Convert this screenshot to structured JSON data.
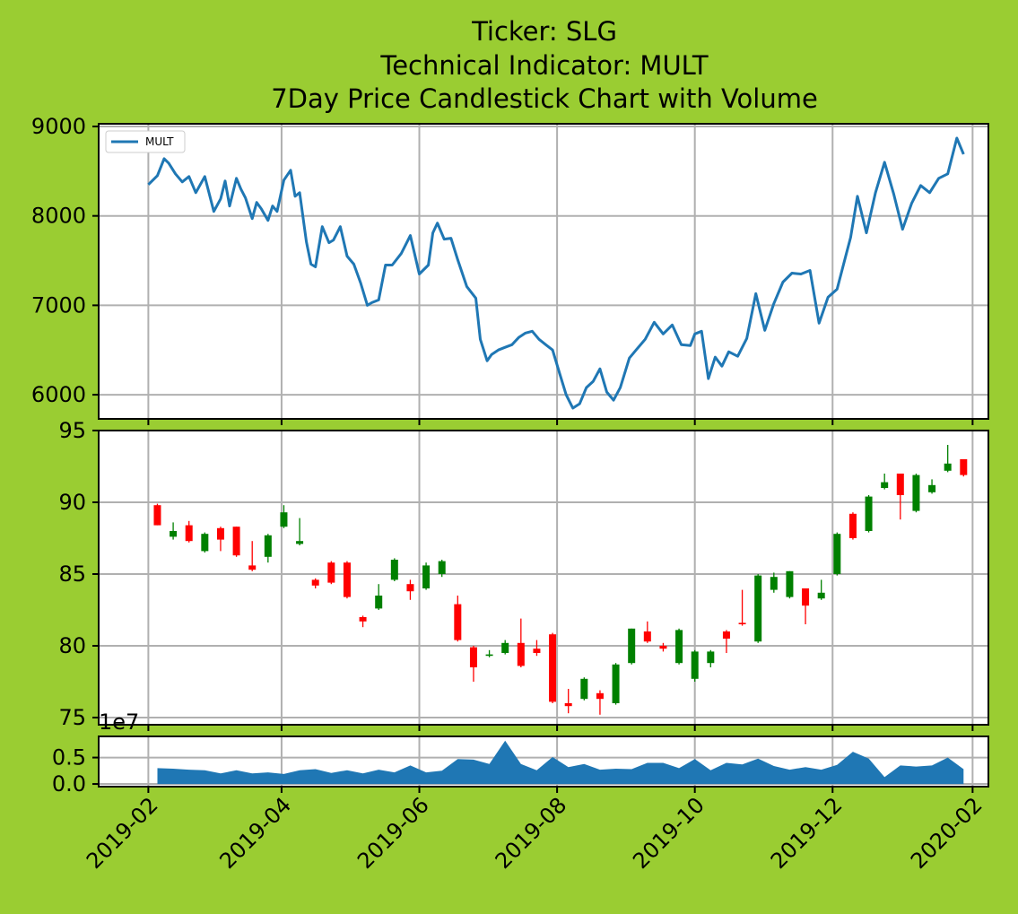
{
  "background_color": "#9acd32",
  "chart_data": [
    {
      "panel": "indicator",
      "type": "line",
      "title_lines": [
        "Ticker: SLG",
        "Technical Indicator: MULT",
        "7Day Price Candlestick Chart with Volume"
      ],
      "legend": {
        "label": "MULT",
        "placement": "top-left"
      },
      "color": "#1f77b4",
      "grid": true,
      "xlim": [
        "2019-01-10",
        "2020-02-08"
      ],
      "ylim": [
        5730,
        9030
      ],
      "yticks": [
        6000,
        7000,
        8000,
        9000
      ],
      "x": [
        "2019-02-01",
        "2019-02-05",
        "2019-02-08",
        "2019-02-10",
        "2019-02-13",
        "2019-02-16",
        "2019-02-19",
        "2019-02-22",
        "2019-02-26",
        "2019-03-02",
        "2019-03-05",
        "2019-03-07",
        "2019-03-09",
        "2019-03-12",
        "2019-03-14",
        "2019-03-16",
        "2019-03-19",
        "2019-03-21",
        "2019-03-23",
        "2019-03-26",
        "2019-03-28",
        "2019-03-30",
        "2019-04-02",
        "2019-04-05",
        "2019-04-07",
        "2019-04-09",
        "2019-04-12",
        "2019-04-14",
        "2019-04-16",
        "2019-04-19",
        "2019-04-22",
        "2019-04-24",
        "2019-04-27",
        "2019-04-30",
        "2019-05-03",
        "2019-05-06",
        "2019-05-09",
        "2019-05-11",
        "2019-05-14",
        "2019-05-17",
        "2019-05-20",
        "2019-05-24",
        "2019-05-28",
        "2019-06-01",
        "2019-06-05",
        "2019-06-07",
        "2019-06-09",
        "2019-06-12",
        "2019-06-15",
        "2019-06-18",
        "2019-06-22",
        "2019-06-26",
        "2019-06-28",
        "2019-07-01",
        "2019-07-03",
        "2019-07-06",
        "2019-07-09",
        "2019-07-12",
        "2019-07-15",
        "2019-07-18",
        "2019-07-21",
        "2019-07-24",
        "2019-07-27",
        "2019-07-30",
        "2019-08-02",
        "2019-08-05",
        "2019-08-08",
        "2019-08-11",
        "2019-08-14",
        "2019-08-17",
        "2019-08-20",
        "2019-08-23",
        "2019-08-26",
        "2019-08-29",
        "2019-09-02",
        "2019-09-05",
        "2019-09-09",
        "2019-09-13",
        "2019-09-17",
        "2019-09-21",
        "2019-09-25",
        "2019-09-29",
        "2019-10-01",
        "2019-10-04",
        "2019-10-07",
        "2019-10-10",
        "2019-10-13",
        "2019-10-16",
        "2019-10-20",
        "2019-10-24",
        "2019-10-28",
        "2019-11-01",
        "2019-11-05",
        "2019-11-09",
        "2019-11-13",
        "2019-11-17",
        "2019-11-21",
        "2019-11-25",
        "2019-11-29",
        "2019-12-03",
        "2019-12-07",
        "2019-12-09",
        "2019-12-12",
        "2019-12-16",
        "2019-12-20",
        "2019-12-24",
        "2019-12-28",
        "2020-01-01",
        "2020-01-05",
        "2020-01-09",
        "2020-01-13",
        "2020-01-17",
        "2020-01-21",
        "2020-01-25",
        "2020-01-28"
      ],
      "y": [
        8350,
        8450,
        8640,
        8590,
        8470,
        8380,
        8440,
        8260,
        8440,
        8050,
        8190,
        8390,
        8110,
        8420,
        8300,
        8200,
        7970,
        8150,
        8080,
        7950,
        8110,
        8050,
        8400,
        8510,
        8220,
        8260,
        7710,
        7460,
        7430,
        7880,
        7700,
        7730,
        7880,
        7550,
        7460,
        7250,
        7000,
        7030,
        7060,
        7450,
        7450,
        7580,
        7780,
        7350,
        7450,
        7810,
        7920,
        7740,
        7750,
        7510,
        7210,
        7080,
        6620,
        6380,
        6450,
        6500,
        6530,
        6560,
        6640,
        6690,
        6710,
        6620,
        6560,
        6500,
        6250,
        6000,
        5850,
        5900,
        6080,
        6150,
        6290,
        6030,
        5940,
        6080,
        6410,
        6500,
        6620,
        6810,
        6680,
        6780,
        6560,
        6550,
        6680,
        6710,
        6180,
        6420,
        6320,
        6480,
        6430,
        6630,
        7130,
        6720,
        7020,
        7260,
        7360,
        7350,
        7390,
        6800,
        7090,
        7180,
        7570,
        7760,
        8220,
        7810,
        8260,
        8600,
        8250,
        7850,
        8140,
        8340,
        8260,
        8420,
        8470,
        8870,
        8690
      ]
    },
    {
      "panel": "candlestick",
      "type": "candlestick",
      "grid": true,
      "ylim": [
        74.5,
        95
      ],
      "yticks": [
        75,
        80,
        85,
        90,
        95
      ],
      "up_color": "#008000",
      "down_color": "#ff0000",
      "dates": [
        "2019-02-05",
        "2019-02-12",
        "2019-02-19",
        "2019-02-26",
        "2019-03-05",
        "2019-03-12",
        "2019-03-19",
        "2019-03-26",
        "2019-04-02",
        "2019-04-09",
        "2019-04-16",
        "2019-04-23",
        "2019-04-30",
        "2019-05-07",
        "2019-05-14",
        "2019-05-21",
        "2019-05-28",
        "2019-06-04",
        "2019-06-11",
        "2019-06-18",
        "2019-06-25",
        "2019-07-02",
        "2019-07-09",
        "2019-07-16",
        "2019-07-23",
        "2019-07-30",
        "2019-08-06",
        "2019-08-13",
        "2019-08-20",
        "2019-08-27",
        "2019-09-03",
        "2019-09-10",
        "2019-09-17",
        "2019-09-24",
        "2019-10-01",
        "2019-10-08",
        "2019-10-15",
        "2019-10-22",
        "2019-10-29",
        "2019-11-05",
        "2019-11-12",
        "2019-11-19",
        "2019-11-26",
        "2019-12-03",
        "2019-12-10",
        "2019-12-17",
        "2019-12-24",
        "2019-12-31",
        "2020-01-07",
        "2020-01-14",
        "2020-01-21",
        "2020-01-28"
      ],
      "open": [
        89.8,
        87.6,
        88.4,
        86.6,
        88.2,
        88.3,
        85.6,
        86.2,
        88.3,
        87.1,
        84.6,
        85.8,
        85.8,
        82.0,
        82.6,
        84.6,
        84.3,
        84.0,
        85.0,
        82.9,
        79.9,
        79.3,
        79.5,
        80.2,
        79.8,
        80.8,
        76.0,
        76.3,
        76.7,
        76.0,
        78.8,
        81.0,
        80.0,
        78.8,
        77.7,
        78.8,
        81.0,
        81.6,
        80.3,
        83.9,
        83.4,
        84.0,
        83.3,
        85.0,
        89.2,
        88.0,
        91.0,
        92.0,
        89.4,
        90.7,
        92.2,
        93.0
      ],
      "close": [
        88.4,
        88.0,
        87.3,
        87.8,
        87.4,
        86.3,
        85.3,
        87.7,
        89.3,
        87.3,
        84.2,
        84.4,
        83.4,
        81.7,
        83.5,
        86.0,
        83.8,
        85.6,
        85.9,
        80.4,
        78.5,
        79.4,
        80.2,
        78.6,
        79.5,
        76.1,
        75.8,
        77.7,
        76.3,
        78.7,
        81.2,
        80.3,
        79.8,
        81.1,
        79.6,
        79.6,
        80.5,
        81.5,
        84.9,
        84.8,
        85.2,
        82.8,
        83.7,
        87.8,
        87.5,
        90.4,
        91.4,
        90.5,
        91.9,
        91.2,
        92.7,
        91.9
      ],
      "high": [
        89.9,
        88.6,
        88.7,
        87.9,
        88.3,
        88.3,
        87.3,
        87.8,
        89.8,
        88.9,
        84.7,
        85.9,
        85.9,
        82.1,
        84.3,
        86.1,
        84.6,
        85.8,
        86.0,
        83.5,
        80.0,
        79.7,
        80.4,
        81.9,
        80.4,
        80.9,
        77.0,
        77.8,
        76.9,
        78.8,
        81.2,
        81.7,
        80.2,
        81.2,
        79.7,
        79.7,
        81.1,
        83.9,
        85.0,
        85.1,
        85.2,
        84.0,
        84.6,
        87.9,
        89.3,
        90.5,
        92.0,
        92.0,
        92.0,
        91.6,
        94.0,
        93.0
      ],
      "low": [
        88.4,
        87.4,
        87.2,
        86.5,
        86.6,
        86.2,
        85.2,
        85.8,
        88.2,
        87.0,
        84.0,
        84.3,
        83.3,
        81.3,
        82.5,
        84.5,
        83.2,
        83.9,
        84.8,
        80.3,
        77.5,
        79.2,
        79.4,
        78.5,
        79.3,
        76.0,
        75.3,
        76.2,
        75.2,
        75.9,
        78.7,
        80.2,
        79.6,
        78.7,
        77.5,
        78.5,
        79.5,
        81.4,
        80.2,
        83.7,
        83.3,
        81.5,
        83.2,
        84.9,
        87.4,
        87.9,
        90.9,
        88.8,
        89.3,
        90.6,
        92.1,
        91.8
      ]
    },
    {
      "panel": "volume",
      "type": "area",
      "color": "#1f77b4",
      "grid": true,
      "offset_label": "1e7",
      "ylim": [
        -0.05,
        0.9
      ],
      "yticks": [
        0.0,
        0.5
      ],
      "ytick_labels": [
        "0.0",
        "0.5"
      ],
      "x": [
        "2019-02-05",
        "2019-02-12",
        "2019-02-19",
        "2019-02-26",
        "2019-03-05",
        "2019-03-12",
        "2019-03-19",
        "2019-03-26",
        "2019-04-02",
        "2019-04-09",
        "2019-04-16",
        "2019-04-23",
        "2019-04-30",
        "2019-05-07",
        "2019-05-14",
        "2019-05-21",
        "2019-05-28",
        "2019-06-04",
        "2019-06-11",
        "2019-06-18",
        "2019-06-25",
        "2019-07-02",
        "2019-07-09",
        "2019-07-16",
        "2019-07-23",
        "2019-07-30",
        "2019-08-06",
        "2019-08-13",
        "2019-08-20",
        "2019-08-27",
        "2019-09-03",
        "2019-09-10",
        "2019-09-17",
        "2019-09-24",
        "2019-10-01",
        "2019-10-08",
        "2019-10-15",
        "2019-10-22",
        "2019-10-29",
        "2019-11-05",
        "2019-11-12",
        "2019-11-19",
        "2019-11-26",
        "2019-12-03",
        "2019-12-10",
        "2019-12-17",
        "2019-12-24",
        "2019-12-31",
        "2020-01-07",
        "2020-01-14",
        "2020-01-21",
        "2020-01-28"
      ],
      "values": [
        0.3,
        0.29,
        0.27,
        0.26,
        0.2,
        0.26,
        0.2,
        0.22,
        0.19,
        0.26,
        0.28,
        0.21,
        0.26,
        0.2,
        0.27,
        0.22,
        0.35,
        0.22,
        0.25,
        0.47,
        0.46,
        0.38,
        0.82,
        0.38,
        0.26,
        0.51,
        0.32,
        0.38,
        0.27,
        0.29,
        0.28,
        0.4,
        0.4,
        0.3,
        0.47,
        0.26,
        0.4,
        0.37,
        0.48,
        0.34,
        0.27,
        0.32,
        0.27,
        0.36,
        0.61,
        0.48,
        0.13,
        0.35,
        0.33,
        0.35,
        0.5,
        0.28
      ]
    }
  ],
  "xaxis": {
    "tick_dates": [
      "2019-02-01",
      "2019-04-01",
      "2019-06-01",
      "2019-08-01",
      "2019-10-01",
      "2019-12-01",
      "2020-02-01"
    ],
    "tick_labels": [
      "2019-02",
      "2019-04",
      "2019-06",
      "2019-08",
      "2019-10",
      "2019-12",
      "2020-02"
    ]
  }
}
